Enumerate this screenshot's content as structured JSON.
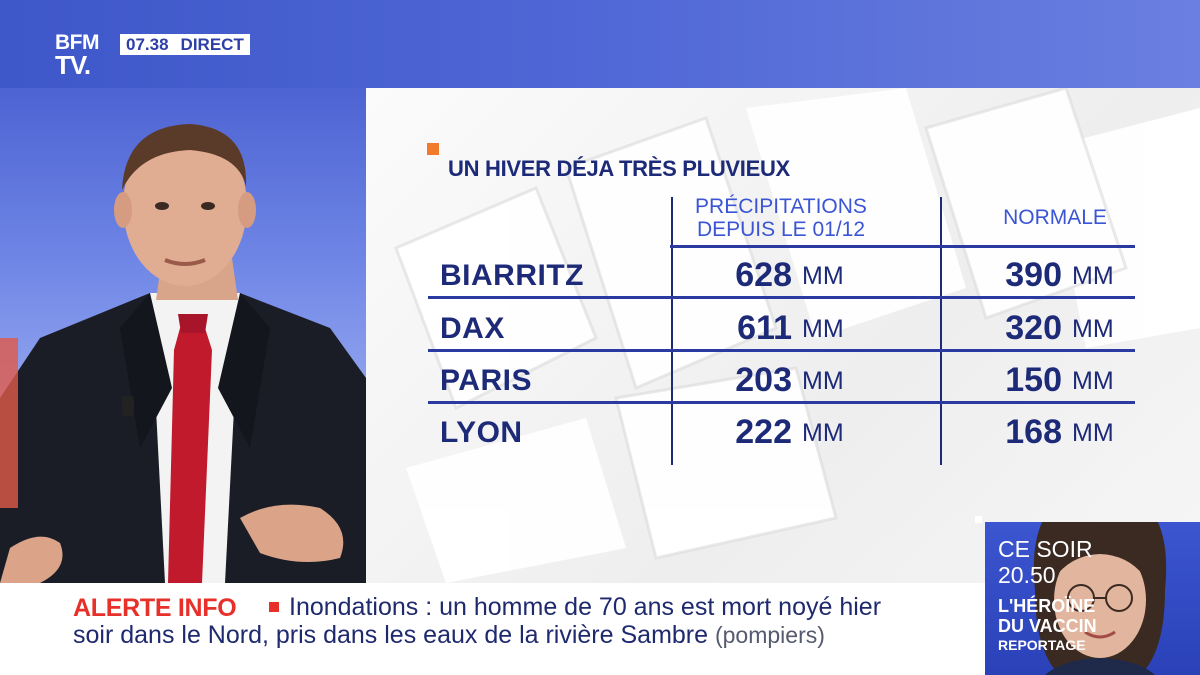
{
  "channel": {
    "logo_line1": "BFM",
    "logo_line2": "TV.",
    "time": "07.38",
    "live_label": "DIRECT"
  },
  "graphic": {
    "title": "UN HIVER DÉJA TRÈS PLUVIEUX",
    "columns": {
      "precip_line1": "PRÉCIPITATIONS",
      "precip_line2": "DEPUIS LE 01/12",
      "normal": "NORMALE"
    },
    "rows": [
      {
        "city": "BIARRITZ",
        "precip": "628",
        "precip_unit": "MM",
        "normal": "390",
        "normal_unit": "MM"
      },
      {
        "city": "DAX",
        "precip": "611",
        "precip_unit": "MM",
        "normal": "320",
        "normal_unit": "MM"
      },
      {
        "city": "PARIS",
        "precip": "203",
        "precip_unit": "MM",
        "normal": "150",
        "normal_unit": "MM"
      },
      {
        "city": "LYON",
        "precip": "222",
        "precip_unit": "MM",
        "normal": "168",
        "normal_unit": "MM"
      }
    ]
  },
  "promo": {
    "line1": "CE SOIR",
    "line2": "20.50",
    "headline1": "L'HÉROÏNE",
    "headline2": "DU VACCIN",
    "tag": "REPORTAGE"
  },
  "ticker": {
    "label": "ALERTE INFO",
    "text1": "Inondations : un homme de 70 ans est mort noyé hier",
    "text2": "soir dans le Nord, pris dans les eaux de la rivière Sambre",
    "source": "(pompiers)"
  },
  "colors": {
    "brand_blue": "#3e57c9",
    "navy_text": "#1d2a78",
    "column_blue": "#3c55d4",
    "alert_red": "#e8302a",
    "accent_orange": "#f07b2a"
  }
}
